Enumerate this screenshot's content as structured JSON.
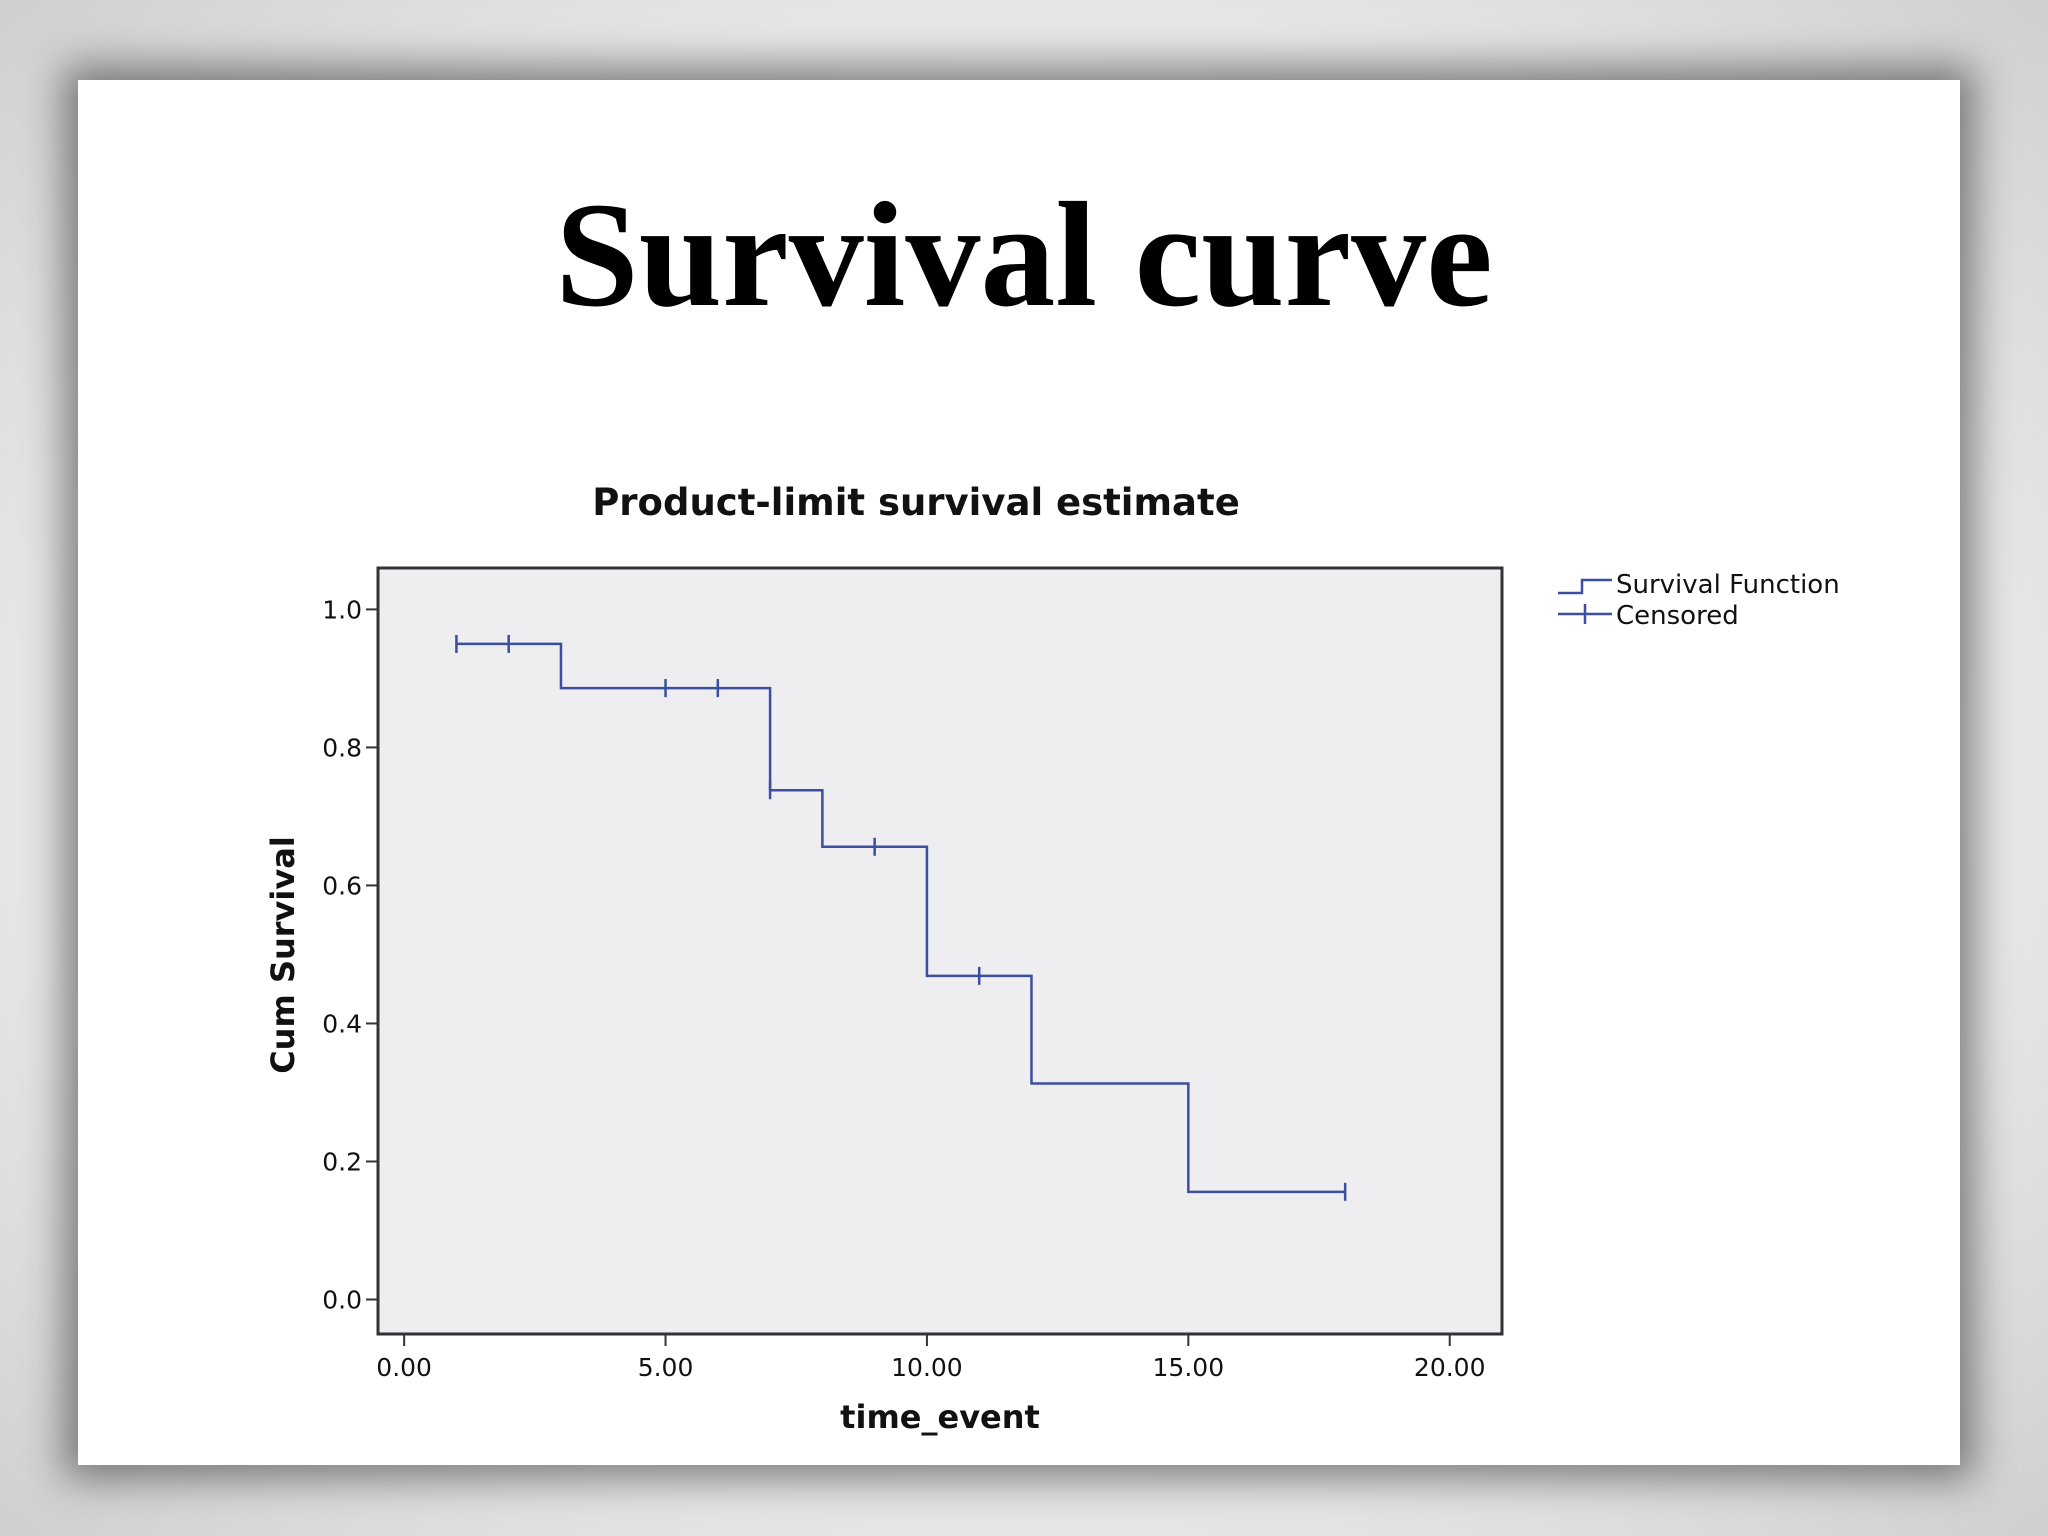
{
  "slide": {
    "title": "Survival curve"
  },
  "chart_data": {
    "type": "line",
    "step": "post",
    "title": "Product-limit survival estimate",
    "xlabel": "time_event",
    "ylabel": "Cum Survival",
    "xlim": [
      -0.5,
      21
    ],
    "ylim": [
      -0.05,
      1.06
    ],
    "xticks": [
      0,
      5,
      10,
      15,
      20
    ],
    "xtick_labels": [
      "0.00",
      "5.00",
      "10.00",
      "15.00",
      "20.00"
    ],
    "yticks": [
      0,
      0.2,
      0.4,
      0.6,
      0.8,
      1.0
    ],
    "ytick_labels": [
      "0.0",
      "0.2",
      "0.4",
      "0.6",
      "0.8",
      "1.0"
    ],
    "grid": false,
    "plot_background": "#eeeef0",
    "line_color": "#3b4ea0",
    "legend": {
      "position": "top-right, outside plot",
      "entries": [
        "Survival Function",
        "Censored"
      ]
    },
    "series": [
      {
        "name": "Survival Function",
        "x": [
          1,
          3,
          7,
          8,
          10,
          12,
          15,
          18
        ],
        "y": [
          0.95,
          0.886,
          0.738,
          0.656,
          0.469,
          0.313,
          0.156,
          0.156
        ]
      },
      {
        "name": "Censored",
        "x": [
          1,
          2,
          5,
          6,
          7,
          9,
          11,
          18
        ],
        "y": [
          0.95,
          0.95,
          0.886,
          0.886,
          0.738,
          0.656,
          0.469,
          0.156
        ]
      }
    ]
  }
}
